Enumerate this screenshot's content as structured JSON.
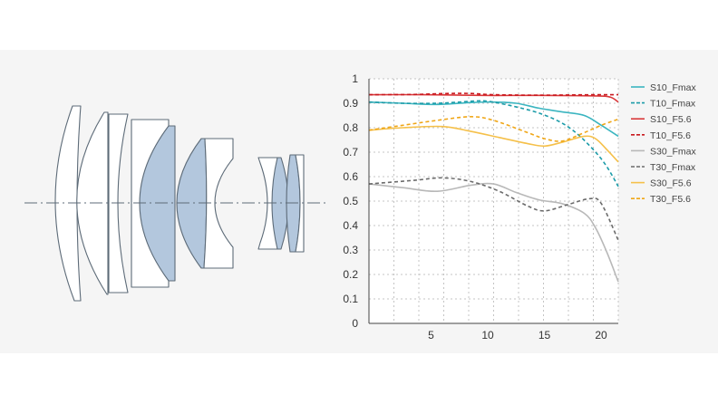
{
  "chart_data": {
    "type": "line",
    "title": "",
    "xlabel": "",
    "ylabel": "",
    "xlim": [
      0,
      22
    ],
    "ylim": [
      0,
      1
    ],
    "grid": true,
    "legend_position": "right",
    "x_ticks": [
      5,
      10,
      15,
      20
    ],
    "y_ticks": [
      "0",
      "0.1",
      "0.2",
      "0.3",
      "0.4",
      "0.5",
      "0.6",
      "0.7",
      "0.8",
      "0.9",
      "1"
    ],
    "series": [
      {
        "name": "S10_Fmax",
        "color": "#3bb5c0",
        "dash": false,
        "x": [
          0,
          3,
          6,
          9,
          11,
          13,
          15,
          17,
          19,
          20.5,
          22
        ],
        "y": [
          0.905,
          0.9,
          0.895,
          0.903,
          0.905,
          0.9,
          0.88,
          0.865,
          0.85,
          0.81,
          0.765
        ]
      },
      {
        "name": "T10_Fmax",
        "color": "#1a9ba8",
        "dash": true,
        "x": [
          0,
          3,
          6,
          8,
          10,
          11.5,
          13,
          15,
          17,
          18.5,
          20,
          21,
          22
        ],
        "y": [
          0.905,
          0.9,
          0.9,
          0.905,
          0.91,
          0.9,
          0.885,
          0.86,
          0.82,
          0.77,
          0.7,
          0.64,
          0.56
        ]
      },
      {
        "name": "S10_F5.6",
        "color": "#d9383a",
        "dash": false,
        "x": [
          0,
          5,
          10,
          15,
          20,
          21.3,
          22
        ],
        "y": [
          0.935,
          0.935,
          0.932,
          0.932,
          0.93,
          0.925,
          0.905
        ]
      },
      {
        "name": "T10_F5.6",
        "color": "#c8171d",
        "dash": true,
        "x": [
          0,
          4,
          7,
          9,
          11,
          15,
          20,
          22
        ],
        "y": [
          0.935,
          0.936,
          0.94,
          0.94,
          0.935,
          0.933,
          0.935,
          0.935
        ]
      },
      {
        "name": "S30_Fmax",
        "color": "#b8b8b8",
        "dash": false,
        "x": [
          0,
          3,
          6,
          9,
          11,
          13,
          15,
          17,
          19,
          20,
          21,
          22
        ],
        "y": [
          0.57,
          0.555,
          0.54,
          0.565,
          0.57,
          0.535,
          0.505,
          0.49,
          0.45,
          0.39,
          0.29,
          0.17
        ]
      },
      {
        "name": "T30_Fmax",
        "color": "#6b6b6b",
        "dash": true,
        "x": [
          0,
          4,
          6.5,
          9,
          11.5,
          14,
          15.5,
          17.5,
          19.5,
          20.5,
          22
        ],
        "y": [
          0.57,
          0.585,
          0.595,
          0.58,
          0.54,
          0.48,
          0.46,
          0.485,
          0.51,
          0.49,
          0.34
        ]
      },
      {
        "name": "S30_F5.6",
        "color": "#f5c04a",
        "dash": false,
        "x": [
          0,
          3,
          6.5,
          9,
          11.5,
          14,
          15.5,
          17,
          19,
          20,
          21,
          22
        ],
        "y": [
          0.79,
          0.8,
          0.805,
          0.785,
          0.76,
          0.735,
          0.725,
          0.74,
          0.765,
          0.755,
          0.71,
          0.66
        ]
      },
      {
        "name": "T30_F5.6",
        "color": "#f0a616",
        "dash": true,
        "x": [
          0,
          3,
          6,
          9,
          11,
          14,
          15.5,
          17,
          18.5,
          20.5,
          22
        ],
        "y": [
          0.79,
          0.81,
          0.83,
          0.845,
          0.83,
          0.78,
          0.755,
          0.745,
          0.77,
          0.81,
          0.835
        ]
      }
    ]
  }
}
